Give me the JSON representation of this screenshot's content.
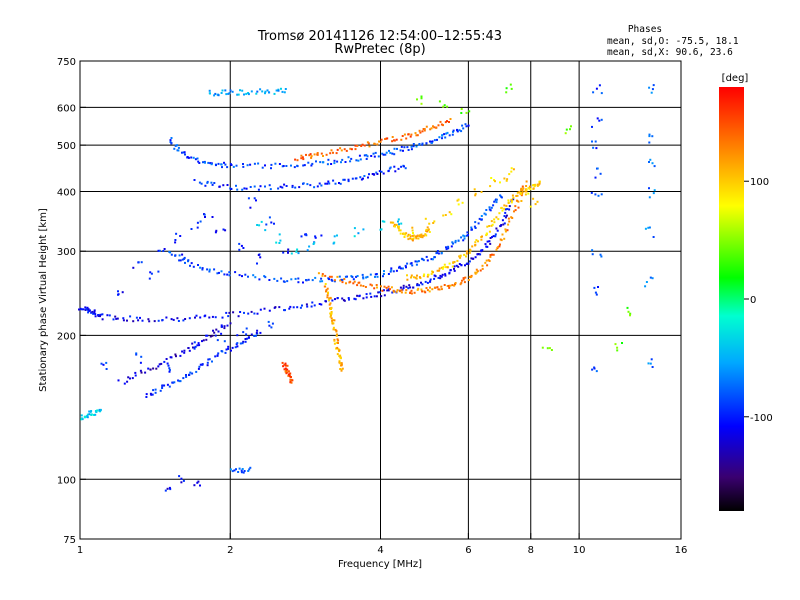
{
  "header": {
    "title_line1": "Tromsø 20141126 12:54:00–12:55:43",
    "title_line2": "RwPretec (8p)"
  },
  "phase_stats": {
    "heading": "Phases",
    "line_o": "mean, sd,O: -75.5, 18.1",
    "line_x": "mean, sd,X:  90.6, 23.6"
  },
  "chart_data": {
    "type": "scatter",
    "title": "Tromsø 20141126 12:54:00–12:55:43",
    "subtitle": "RwPretec (8p)",
    "xlabel": "Frequency [MHz]",
    "ylabel": "Stationary phase Virtual Height [km]",
    "xscale": "log",
    "yscale": "log",
    "xlim": [
      1,
      16
    ],
    "ylim": [
      75,
      750
    ],
    "xticks": [
      1,
      2,
      4,
      6,
      8,
      10,
      16
    ],
    "yticks": [
      75,
      100,
      200,
      300,
      400,
      500,
      600,
      750
    ],
    "grid": true,
    "colorbar": {
      "label": "[deg]",
      "range": [
        -180,
        180
      ],
      "ticks": [
        -100,
        0,
        100
      ],
      "colormap": "rainbow"
    },
    "traces": [
      {
        "points": [
          [
            1.0,
            230
          ],
          [
            1.05,
            225
          ],
          [
            1.1,
            220
          ],
          [
            1.3,
            217
          ],
          [
            1.6,
            218
          ],
          [
            2.0,
            222
          ],
          [
            2.5,
            228
          ],
          [
            3.0,
            235
          ],
          [
            3.5,
            240
          ],
          [
            4.0,
            246
          ],
          [
            4.5,
            253
          ],
          [
            5.0,
            262
          ],
          [
            5.5,
            273
          ],
          [
            6.0,
            288
          ],
          [
            6.5,
            310
          ],
          [
            7.0,
            345
          ],
          [
            7.3,
            390
          ]
        ],
        "phase": -110
      },
      {
        "points": [
          [
            1.35,
            150
          ],
          [
            1.5,
            158
          ],
          [
            1.7,
            170
          ],
          [
            1.9,
            183
          ],
          [
            2.1,
            195
          ],
          [
            2.3,
            205
          ]
        ],
        "phase": -95
      },
      {
        "points": [
          [
            1.2,
            160
          ],
          [
            1.4,
            172
          ],
          [
            1.6,
            185
          ],
          [
            1.8,
            200
          ],
          [
            2.0,
            215
          ]
        ],
        "phase": -120
      },
      {
        "points": [
          [
            1.0,
            135
          ],
          [
            1.05,
            138
          ],
          [
            1.1,
            140
          ]
        ],
        "phase": -40
      },
      {
        "points": [
          [
            1.5,
            300
          ],
          [
            1.7,
            280
          ],
          [
            2.0,
            270
          ],
          [
            2.5,
            262
          ],
          [
            3.0,
            262
          ],
          [
            3.5,
            265
          ],
          [
            4.0,
            270
          ],
          [
            4.5,
            280
          ],
          [
            5.0,
            292
          ],
          [
            5.5,
            308
          ],
          [
            6.0,
            330
          ],
          [
            6.5,
            365
          ],
          [
            7.0,
            400
          ]
        ],
        "phase": -85
      },
      {
        "points": [
          [
            3.0,
            270
          ],
          [
            3.5,
            258
          ],
          [
            4.0,
            252
          ],
          [
            4.5,
            248
          ],
          [
            5.0,
            250
          ],
          [
            5.5,
            256
          ],
          [
            6.0,
            265
          ],
          [
            6.5,
            285
          ],
          [
            7.0,
            320
          ],
          [
            7.5,
            380
          ],
          [
            7.8,
            420
          ]
        ],
        "phase": 130
      },
      {
        "points": [
          [
            4.5,
            265
          ],
          [
            5.0,
            270
          ],
          [
            5.5,
            282
          ],
          [
            6.0,
            300
          ],
          [
            6.5,
            330
          ],
          [
            7.0,
            370
          ],
          [
            7.5,
            400
          ],
          [
            8.0,
            410
          ],
          [
            8.3,
            420
          ]
        ],
        "phase": 100
      },
      {
        "points": [
          [
            1.5,
            520
          ],
          [
            1.6,
            480
          ],
          [
            1.8,
            460
          ],
          [
            2.0,
            455
          ],
          [
            2.5,
            455
          ],
          [
            3.0,
            460
          ],
          [
            3.5,
            470
          ],
          [
            4.0,
            480
          ],
          [
            4.5,
            495
          ],
          [
            5.0,
            510
          ],
          [
            5.5,
            530
          ],
          [
            6.0,
            555
          ]
        ],
        "phase": -85
      },
      {
        "points": [
          [
            1.7,
            420
          ],
          [
            2.0,
            410
          ],
          [
            2.5,
            410
          ],
          [
            3.0,
            415
          ],
          [
            3.5,
            425
          ],
          [
            4.0,
            440
          ],
          [
            4.5,
            455
          ]
        ],
        "phase": -95
      },
      {
        "points": [
          [
            2.7,
            470
          ],
          [
            3.0,
            480
          ],
          [
            3.5,
            495
          ],
          [
            4.0,
            510
          ],
          [
            4.5,
            525
          ],
          [
            5.0,
            545
          ],
          [
            5.5,
            565
          ]
        ],
        "phase": 140
      },
      {
        "points": [
          [
            1.8,
            645
          ],
          [
            2.0,
            648
          ],
          [
            2.3,
            650
          ],
          [
            2.6,
            652
          ]
        ],
        "phase": -55
      },
      {
        "points": [
          [
            2.0,
            105
          ],
          [
            2.2,
            105
          ]
        ],
        "phase": -80
      },
      {
        "points": [
          [
            3.1,
            255
          ],
          [
            3.15,
            235
          ],
          [
            3.2,
            215
          ],
          [
            3.25,
            195
          ],
          [
            3.3,
            180
          ],
          [
            3.35,
            170
          ]
        ],
        "phase": 110
      },
      {
        "points": [
          [
            2.55,
            175
          ],
          [
            2.6,
            168
          ],
          [
            2.65,
            160
          ]
        ],
        "phase": 150
      },
      {
        "points": [
          [
            4.2,
            350
          ],
          [
            4.4,
            330
          ],
          [
            4.6,
            320
          ],
          [
            4.8,
            325
          ],
          [
            5.0,
            335
          ]
        ],
        "phase": 105
      }
    ],
    "scatter": [
      {
        "x": [
          1.2,
          1.3,
          1.45,
          1.55,
          1.7,
          1.9,
          2.1,
          2.3,
          2.6,
          3.0,
          1.4,
          1.6,
          1.8,
          2.2,
          2.4,
          2.8
        ],
        "y": [
          250,
          280,
          300,
          320,
          340,
          330,
          310,
          290,
          300,
          320,
          270,
          290,
          360,
          380,
          350,
          330
        ],
        "phase": -100
      },
      {
        "x": [
          2.3,
          2.5,
          2.7,
          2.9,
          3.2,
          3.6,
          4.0,
          4.4
        ],
        "y": [
          340,
          320,
          300,
          310,
          320,
          330,
          340,
          350
        ],
        "phase": -45
      },
      {
        "x": [
          1.1,
          1.3,
          1.5,
          1.7,
          1.9,
          2.1,
          2.4
        ],
        "y": [
          175,
          180,
          170,
          190,
          200,
          205,
          210
        ],
        "phase": -90
      },
      {
        "x": [
          4.6,
          5.0,
          5.4,
          5.8,
          6.2,
          6.6,
          7.0,
          7.3,
          7.7,
          8.1
        ],
        "y": [
          330,
          350,
          360,
          380,
          400,
          420,
          430,
          440,
          400,
          380
        ],
        "phase": 95
      },
      {
        "x": [
          10.8,
          10.8,
          10.8,
          10.8,
          10.8,
          10.8,
          10.8,
          10.8
        ],
        "y": [
          660,
          560,
          500,
          440,
          390,
          300,
          250,
          170
        ],
        "phase": -90
      },
      {
        "x": [
          13.8,
          13.8,
          13.8,
          13.8,
          13.8,
          13.8,
          13.8
        ],
        "y": [
          660,
          520,
          460,
          400,
          330,
          260,
          175
        ],
        "phase": -70
      },
      {
        "x": [
          1.5,
          1.6,
          1.7
        ],
        "y": [
          95,
          100,
          98
        ],
        "phase": -110
      },
      {
        "x": [
          4.8,
          5.3,
          5.9,
          7.2,
          8.6,
          9.5,
          11.9,
          12.7
        ],
        "y": [
          620,
          610,
          600,
          660,
          190,
          540,
          190,
          225
        ],
        "phase": 40
      }
    ]
  }
}
